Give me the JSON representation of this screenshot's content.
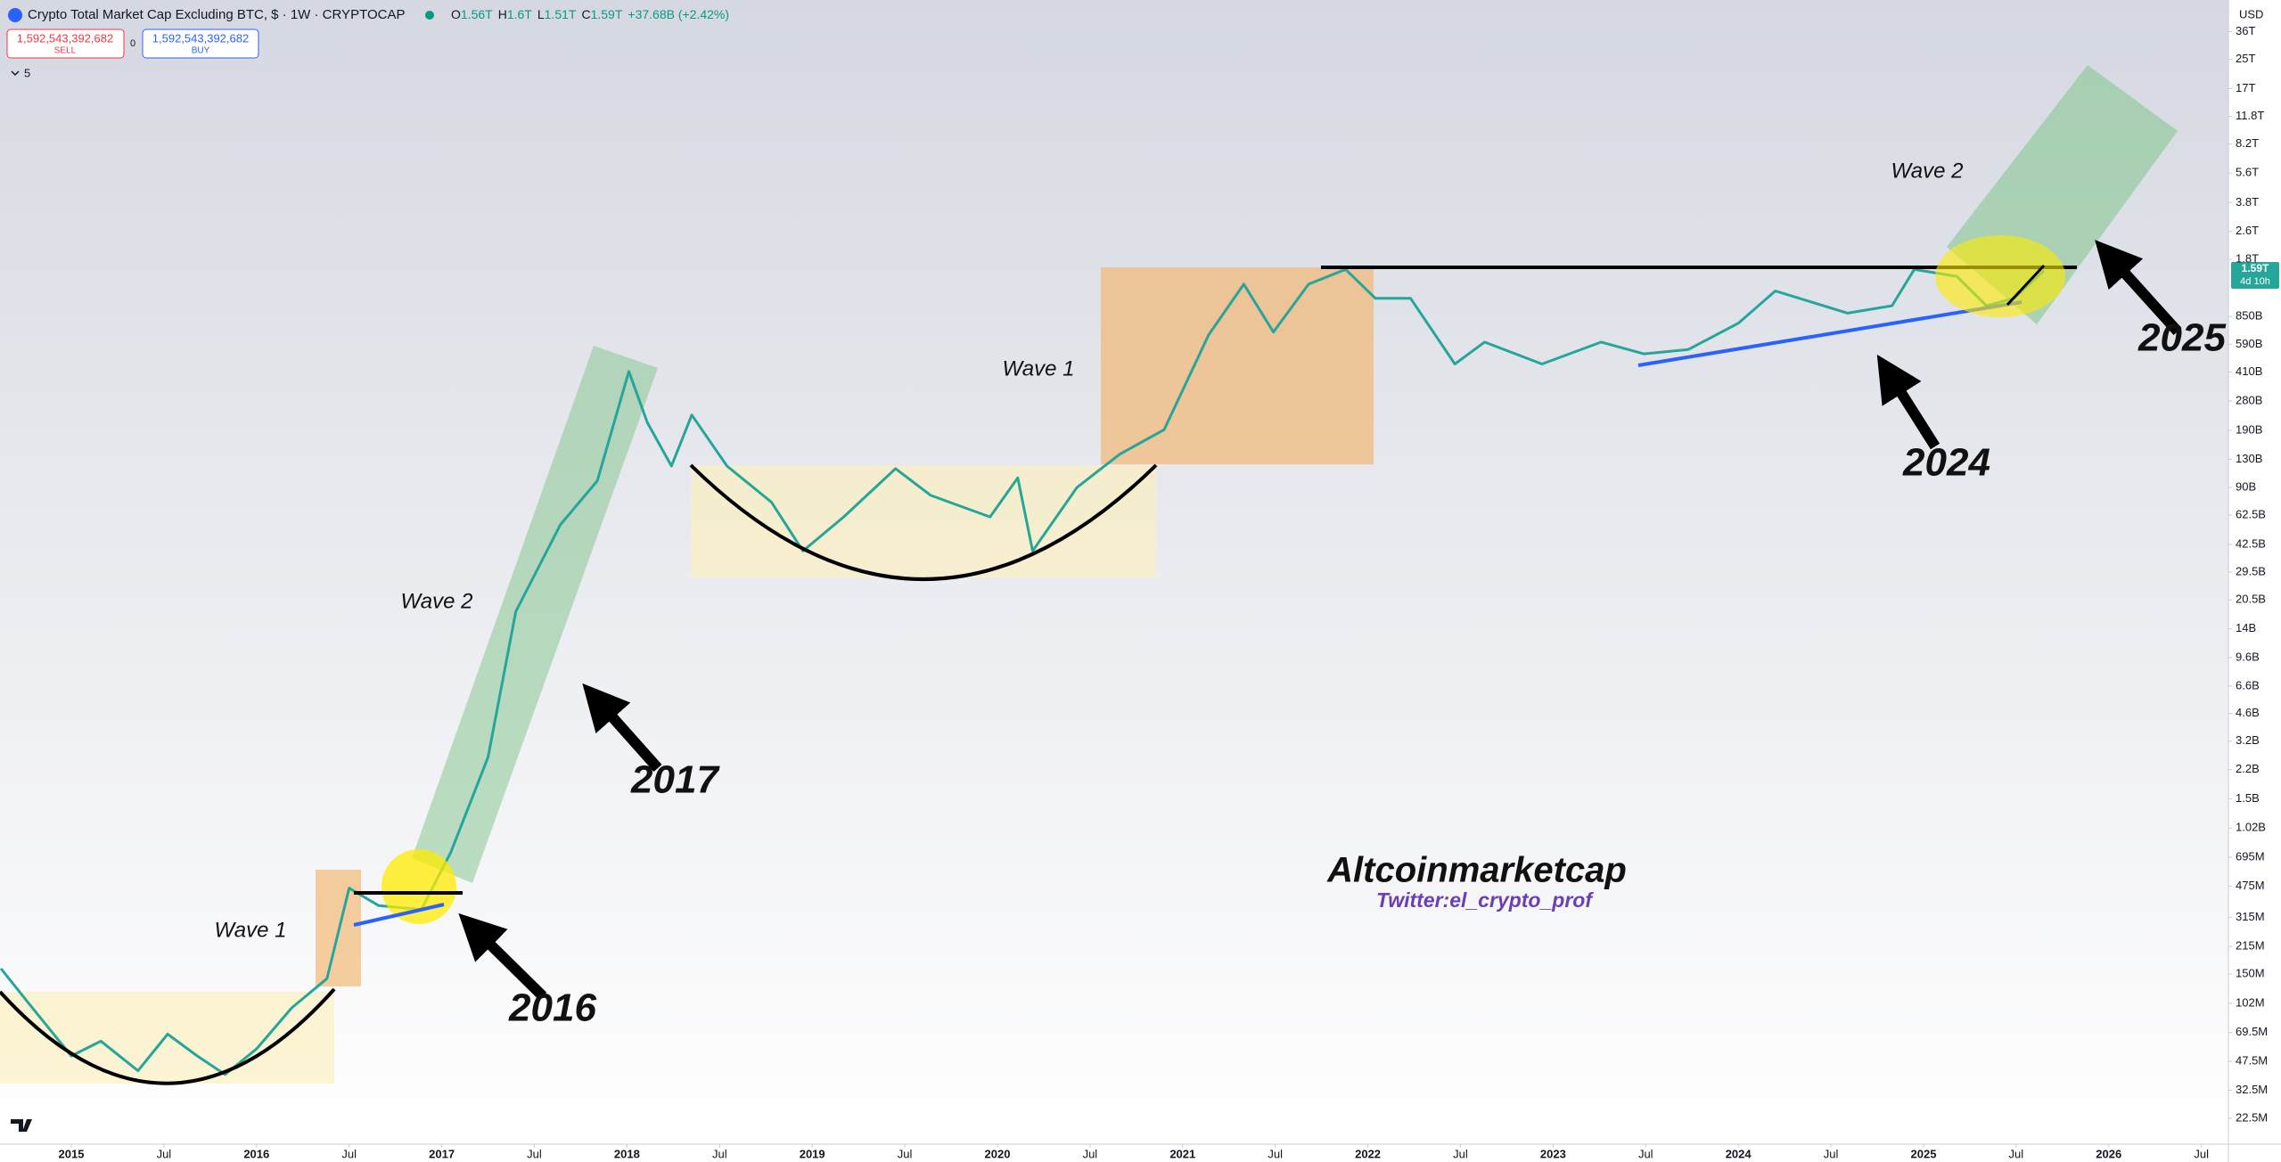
{
  "header": {
    "title": "Crypto Total Market Cap Excluding BTC, $ · 1W · CRYPTOCAP",
    "ohlc": [
      {
        "label": "O",
        "value": "1.56T"
      },
      {
        "label": "H",
        "value": "1.6T"
      },
      {
        "label": "L",
        "value": "1.51T"
      },
      {
        "label": "C",
        "value": "1.59T"
      }
    ],
    "change": "+37.68B (+2.42%)",
    "sell_price": "1,592,543,392,682",
    "sell_label": "SELL",
    "spread": "0",
    "buy_price": "1,592,543,392,682",
    "buy_label": "BUY",
    "indicators": "5",
    "currency": "USD",
    "price_tag": "1.59T",
    "countdown": "4d 10h"
  },
  "chart_data": {
    "type": "line",
    "color": "#26a69a",
    "log_y": true,
    "grid": false,
    "x": [
      2014.62,
      2014.77,
      2015.0,
      2015.16,
      2015.36,
      2015.52,
      2015.68,
      2015.83,
      2016.0,
      2016.19,
      2016.38,
      2016.5,
      2016.66,
      2016.89,
      2017.05,
      2017.25,
      2017.4,
      2017.64,
      2017.84,
      2018.01,
      2018.11,
      2018.24,
      2018.35,
      2018.54,
      2018.78,
      2018.95,
      2019.17,
      2019.45,
      2019.64,
      2019.96,
      2020.11,
      2020.19,
      2020.43,
      2020.66,
      2020.9,
      2021.14,
      2021.33,
      2021.49,
      2021.68,
      2021.88,
      2022.04,
      2022.23,
      2022.47,
      2022.63,
      2022.94,
      2023.26,
      2023.49,
      2023.73,
      2024.0,
      2024.2,
      2024.59,
      2024.83,
      2024.95,
      2025.18,
      2025.34,
      2025.49,
      2025.65
    ],
    "values": [
      161000000,
      102000000,
      51000000,
      62000000,
      42000000,
      68000000,
      51000000,
      40000000,
      56000000,
      96000000,
      141000000,
      463000000,
      368000000,
      350000000,
      747000000,
      2590000000,
      17600000000,
      55000000000,
      98000000000,
      413000000000,
      211000000000,
      119000000000,
      233000000000,
      119000000000,
      74000000000,
      39000000000,
      61000000000,
      115000000000,
      81000000000,
      61000000000,
      102000000000,
      39000000000,
      90000000000,
      139000000000,
      192000000000,
      667000000000,
      1300000000000,
      693000000000,
      1300000000000,
      1580000000000,
      1080000000000,
      1080000000000,
      455000000000,
      607000000000,
      455000000000,
      607000000000,
      520000000000,
      551000000000,
      778000000000,
      1190000000000,
      889000000000,
      979000000000,
      1580000000000,
      1440000000000,
      979000000000,
      1080000000000,
      1550000000000
    ],
    "xlim": [
      2014.615,
      2026.646
    ],
    "ylim": [
      16000000,
      54500000000000
    ],
    "xticks": [
      2015,
      {
        "value": 2015.5,
        "label": "Jul"
      },
      2016,
      {
        "value": 2016.5,
        "label": "Jul"
      },
      2017,
      {
        "value": 2017.5,
        "label": "Jul"
      },
      2018,
      {
        "value": 2018.5,
        "label": "Jul"
      },
      2019,
      {
        "value": 2019.5,
        "label": "Jul"
      },
      2020,
      {
        "value": 2020.5,
        "label": "Jul"
      },
      2021,
      {
        "value": 2021.5,
        "label": "Jul"
      },
      2022,
      {
        "value": 2022.5,
        "label": "Jul"
      },
      2023,
      {
        "value": 2023.5,
        "label": "Jul"
      },
      2024,
      {
        "value": 2024.5,
        "label": "Jul"
      },
      2025,
      {
        "value": 2025.5,
        "label": "Jul"
      },
      2026,
      {
        "value": 2026.5,
        "label": "Jul"
      }
    ],
    "yticks": [
      {
        "value": 22500000,
        "label": "22.5M"
      },
      {
        "value": 32500000,
        "label": "32.5M"
      },
      {
        "value": 47500000,
        "label": "47.5M"
      },
      {
        "value": 69500000,
        "label": "69.5M"
      },
      {
        "value": 102000000,
        "label": "102M"
      },
      {
        "value": 150000000,
        "label": "150M"
      },
      {
        "value": 215000000,
        "label": "215M"
      },
      {
        "value": 315000000,
        "label": "315M"
      },
      {
        "value": 475000000,
        "label": "475M"
      },
      {
        "value": 695000000,
        "label": "695M"
      },
      {
        "value": 1020000000,
        "label": "1.02B"
      },
      {
        "value": 1500000000,
        "label": "1.5B"
      },
      {
        "value": 2200000000,
        "label": "2.2B"
      },
      {
        "value": 3200000000,
        "label": "3.2B"
      },
      {
        "value": 4600000000,
        "label": "4.6B"
      },
      {
        "value": 6600000000,
        "label": "6.6B"
      },
      {
        "value": 9600000000,
        "label": "9.6B"
      },
      {
        "value": 14000000000,
        "label": "14B"
      },
      {
        "value": 20500000000,
        "label": "20.5B"
      },
      {
        "value": 29500000000,
        "label": "29.5B"
      },
      {
        "value": 42500000000,
        "label": "42.5B"
      },
      {
        "value": 62500000000,
        "label": "62.5B"
      },
      {
        "value": 90000000000,
        "label": "90B"
      },
      {
        "value": 130000000000,
        "label": "130B"
      },
      {
        "value": 190000000000,
        "label": "190B"
      },
      {
        "value": 280000000000,
        "label": "280B"
      },
      {
        "value": 410000000000,
        "label": "410B"
      },
      {
        "value": 590000000000,
        "label": "590B"
      },
      {
        "value": 850000000000,
        "label": "850B"
      },
      {
        "value": 1800000000000,
        "label": "1.8T"
      },
      {
        "value": 2600000000000,
        "label": "2.6T"
      },
      {
        "value": 3800000000000,
        "label": "3.8T"
      },
      {
        "value": 5600000000000,
        "label": "5.6T"
      },
      {
        "value": 8200000000000,
        "label": "8.2T"
      },
      {
        "value": 11800000000000,
        "label": "11.8T"
      },
      {
        "value": 17000000000000,
        "label": "17T"
      },
      {
        "value": 25000000000000,
        "label": "25T"
      },
      {
        "value": 36000000000000,
        "label": "36T"
      }
    ],
    "annotations": [
      "Wave 1",
      "2016",
      "Wave 2",
      "2017",
      "Wave 1",
      "2024",
      "Wave 2",
      "2025",
      "Altcoinmarketcap",
      "Twitter:el_crypto_prof"
    ]
  }
}
